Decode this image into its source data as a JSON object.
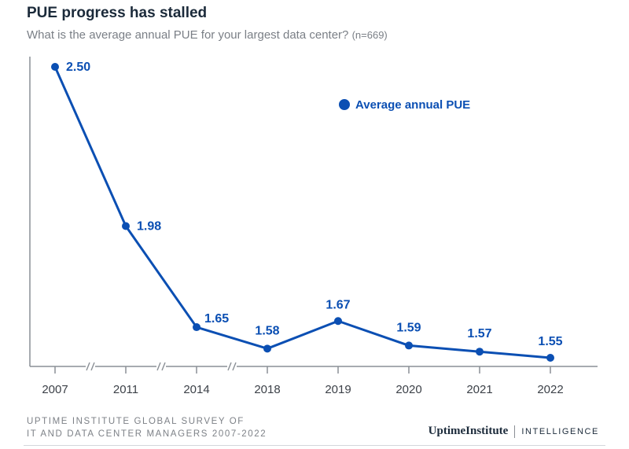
{
  "header": {
    "title": "PUE progress has stalled",
    "subtitle": "What is the average annual PUE for your largest data center?",
    "sample": "(n=669)"
  },
  "footer": {
    "source_line1": "UPTIME INSTITUTE GLOBAL SURVEY OF",
    "source_line2": "IT AND DATA CENTER MANAGERS 2007-2022",
    "brand_name": "UptimeInstitute",
    "brand_suffix": "INTELLIGENCE"
  },
  "colors": {
    "series": "#0b4fb3",
    "axis": "#8a8f95",
    "text_dark": "#1b2a3a"
  },
  "chart_data": {
    "type": "line",
    "title": "PUE progress has stalled",
    "x": [
      "2007",
      "2011",
      "2014",
      "2018",
      "2019",
      "2020",
      "2021",
      "2022"
    ],
    "series": [
      {
        "name": "Average annual PUE",
        "values": [
          2.5,
          1.98,
          1.65,
          1.58,
          1.67,
          1.59,
          1.57,
          1.55
        ]
      }
    ],
    "value_labels": [
      "2.50",
      "1.98",
      "1.65",
      "1.58",
      "1.67",
      "1.59",
      "1.57",
      "1.55"
    ],
    "axis_breaks_after": [
      "2007",
      "2011",
      "2014"
    ],
    "legend_position": "top-right",
    "grid": false
  }
}
